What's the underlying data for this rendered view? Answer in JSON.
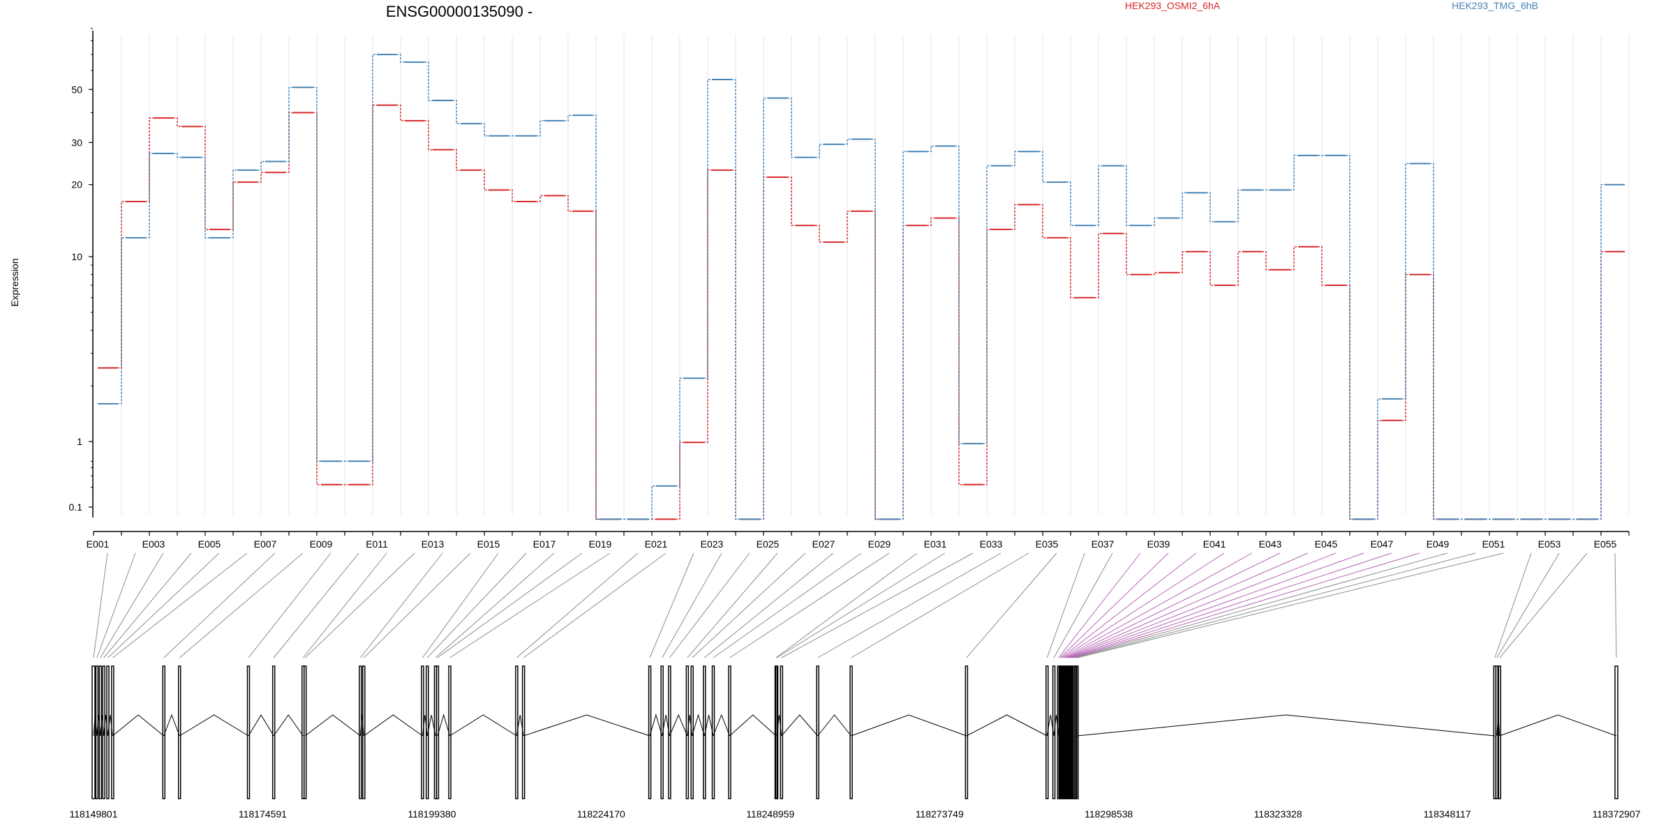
{
  "chart_data": {
    "type": "line",
    "title": "ENSG00000135090 -",
    "ylabel": "Expression",
    "xlabel": "",
    "y_scale": "log",
    "ylim": [
      0.065,
      95
    ],
    "y_ticks": [
      0.1,
      1,
      10,
      20,
      30,
      50
    ],
    "y_tick_labels": [
      "0.1",
      "1",
      "10",
      "20",
      "30",
      "50"
    ],
    "legend_placement": "top-right",
    "colors": {
      "series1": "#d62728",
      "series2": "#4682b4",
      "grid": "#e6e6ee",
      "axis": "#000000",
      "connector": "#8c8c8c",
      "connector_highlight": "#b565b5",
      "gene_model": "#000000"
    },
    "exon_labels": [
      "E001",
      "E003",
      "E005",
      "E007",
      "E009",
      "E011",
      "E013",
      "E015",
      "E017",
      "E019",
      "E021",
      "E023",
      "E025",
      "E027",
      "E029",
      "E031",
      "E033",
      "E035",
      "E037",
      "E039",
      "E041",
      "E043",
      "E045",
      "E047",
      "E049",
      "E051",
      "E053",
      "E055"
    ],
    "categories": [
      "E001",
      "E002",
      "E003",
      "E004",
      "E005",
      "E006",
      "E007",
      "E008",
      "E009",
      "E010",
      "E011",
      "E012",
      "E013",
      "E014",
      "E015",
      "E016",
      "E017",
      "E018",
      "E019",
      "E020",
      "E021",
      "E022",
      "E023",
      "E024",
      "E025",
      "E026",
      "E027",
      "E028",
      "E029",
      "E030",
      "E031",
      "E032",
      "E033",
      "E034",
      "E035",
      "E036",
      "E037",
      "E038",
      "E039",
      "E040",
      "E041",
      "E042",
      "E043",
      "E044",
      "E045",
      "E046",
      "E047",
      "E048",
      "E049",
      "E050",
      "E051",
      "E052",
      "E053",
      "E054",
      "E055"
    ],
    "series": [
      {
        "name": "HEK293_OSMI2_6hA",
        "values": [
          2.5,
          17,
          38,
          35,
          13,
          20.5,
          22.5,
          40,
          0.22,
          0.22,
          43,
          37,
          28,
          23,
          19,
          17,
          18,
          15.5,
          0.07,
          0.07,
          0.07,
          0.97,
          23,
          0.07,
          21.5,
          13.5,
          11.5,
          15.5,
          0.07,
          13.5,
          14.5,
          0.22,
          13,
          16.5,
          12,
          6,
          12.5,
          8,
          8.2,
          10.5,
          7,
          10.5,
          8.5,
          11,
          7,
          0.07,
          1.3,
          8,
          0.07,
          0.07,
          0.07,
          0.07,
          0.07,
          0.07,
          10.5
        ]
      },
      {
        "name": "HEK293_TMG_6hB",
        "values": [
          1.6,
          12,
          27,
          26,
          12,
          23,
          25,
          51,
          0.5,
          0.5,
          70,
          65,
          45,
          36,
          32,
          32,
          37,
          39,
          0.07,
          0.07,
          0.21,
          2.2,
          55,
          0.07,
          46,
          26,
          29.5,
          31,
          0.07,
          27.5,
          29,
          0.93,
          24,
          27.5,
          20.5,
          13.5,
          24,
          13.5,
          14.5,
          18.5,
          14,
          19,
          19,
          26.5,
          26.5,
          0.07,
          1.7,
          24.5,
          0.07,
          0.07,
          0.07,
          0.07,
          0.07,
          0.07,
          20
        ]
      }
    ],
    "genomic_ticks": [
      "118149801",
      "118174591",
      "118199380",
      "118224170",
      "118248959",
      "118273749",
      "118298538",
      "118323328",
      "118348117",
      "118372907"
    ],
    "genomic_range": [
      118149801,
      118372907
    ],
    "exon_positions": [
      118149801,
      118150300,
      118150800,
      118151300,
      118151900,
      118152600,
      118160100,
      118162400,
      118172500,
      118176200,
      118180500,
      118180800,
      118188900,
      118189400,
      118198000,
      118198700,
      118199900,
      118200200,
      118202000,
      118211800,
      118212800,
      118231300,
      118233100,
      118234200,
      118236800,
      118237500,
      118239300,
      118240600,
      118243000,
      118249800,
      118249900,
      118250600,
      118255900,
      118260800,
      118277700,
      118289500,
      118290500,
      118291200,
      118291400,
      118291600,
      118291800,
      118292000,
      118292200,
      118292400,
      118292600,
      118292800,
      118293000,
      118293200,
      118293400,
      118293700,
      118293900,
      118355100,
      118355400,
      118355800,
      118372907
    ]
  }
}
